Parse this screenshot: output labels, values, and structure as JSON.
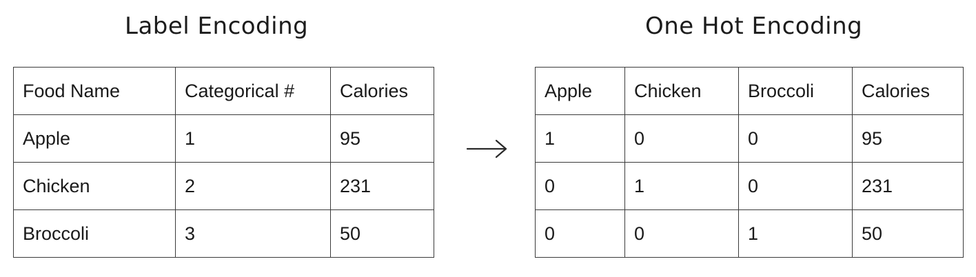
{
  "label_encoding": {
    "title": "Label Encoding",
    "headers": [
      "Food Name",
      "Categorical #",
      "Calories"
    ],
    "rows": [
      [
        "Apple",
        "1",
        "95"
      ],
      [
        "Chicken",
        "2",
        "231"
      ],
      [
        "Broccoli",
        "3",
        "50"
      ]
    ]
  },
  "one_hot_encoding": {
    "title": "One Hot Encoding",
    "headers": [
      "Apple",
      "Chicken",
      "Broccoli",
      "Calories"
    ],
    "rows": [
      [
        "1",
        "0",
        "0",
        "95"
      ],
      [
        "0",
        "1",
        "0",
        "231"
      ],
      [
        "0",
        "0",
        "1",
        "50"
      ]
    ]
  },
  "arrow": {
    "icon": "right-arrow-icon",
    "glyph": "→"
  }
}
